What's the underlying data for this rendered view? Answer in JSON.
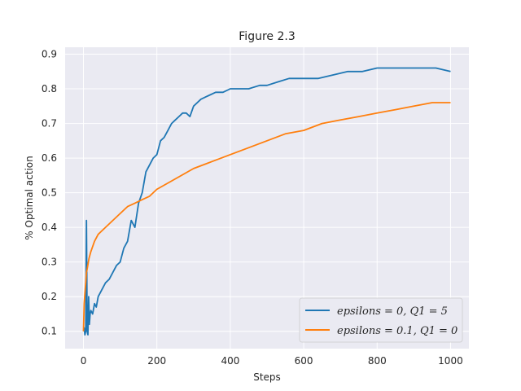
{
  "chart_data": {
    "type": "line",
    "title": "Figure 2.3",
    "xlabel": "Steps",
    "ylabel": "% Optimal action",
    "xlim": [
      -50,
      1050
    ],
    "ylim": [
      0.05,
      0.92
    ],
    "xticks": [
      0,
      200,
      400,
      600,
      800,
      1000
    ],
    "yticks": [
      0.1,
      0.2,
      0.3,
      0.4,
      0.5,
      0.6,
      0.7,
      0.8,
      0.9
    ],
    "grid": true,
    "legend_position": "bottom-right",
    "background": "#eaeaf2",
    "series": [
      {
        "name": "epsilons = 0, Q1 = 5",
        "color": "#1f77b4",
        "x": [
          0,
          2,
          4,
          6,
          8,
          10,
          12,
          14,
          16,
          18,
          20,
          25,
          30,
          35,
          40,
          50,
          60,
          70,
          80,
          90,
          100,
          110,
          120,
          130,
          140,
          150,
          160,
          170,
          180,
          190,
          200,
          210,
          220,
          230,
          240,
          250,
          260,
          270,
          280,
          290,
          300,
          320,
          340,
          360,
          380,
          400,
          420,
          450,
          480,
          500,
          530,
          560,
          600,
          640,
          680,
          720,
          760,
          800,
          840,
          880,
          920,
          960,
          1000
        ],
        "y": [
          0.1,
          0.11,
          0.09,
          0.1,
          0.42,
          0.1,
          0.09,
          0.2,
          0.12,
          0.15,
          0.16,
          0.15,
          0.18,
          0.17,
          0.2,
          0.22,
          0.24,
          0.25,
          0.27,
          0.29,
          0.3,
          0.34,
          0.36,
          0.42,
          0.4,
          0.47,
          0.5,
          0.56,
          0.58,
          0.6,
          0.61,
          0.65,
          0.66,
          0.68,
          0.7,
          0.71,
          0.72,
          0.73,
          0.73,
          0.72,
          0.75,
          0.77,
          0.78,
          0.79,
          0.79,
          0.8,
          0.8,
          0.8,
          0.81,
          0.81,
          0.82,
          0.83,
          0.83,
          0.83,
          0.84,
          0.85,
          0.85,
          0.86,
          0.86,
          0.86,
          0.86,
          0.86,
          0.85
        ]
      },
      {
        "name": "epsilons = 0.1, Q1 = 0",
        "color": "#ff7f0e",
        "x": [
          0,
          2,
          4,
          6,
          8,
          10,
          15,
          20,
          30,
          40,
          50,
          60,
          80,
          100,
          120,
          140,
          160,
          180,
          200,
          250,
          300,
          350,
          400,
          450,
          500,
          550,
          600,
          650,
          700,
          750,
          800,
          850,
          900,
          950,
          1000
        ],
        "y": [
          0.1,
          0.18,
          0.21,
          0.24,
          0.27,
          0.28,
          0.31,
          0.33,
          0.36,
          0.38,
          0.39,
          0.4,
          0.42,
          0.44,
          0.46,
          0.47,
          0.48,
          0.49,
          0.51,
          0.54,
          0.57,
          0.59,
          0.61,
          0.63,
          0.65,
          0.67,
          0.68,
          0.7,
          0.71,
          0.72,
          0.73,
          0.74,
          0.75,
          0.76,
          0.76
        ]
      }
    ]
  }
}
